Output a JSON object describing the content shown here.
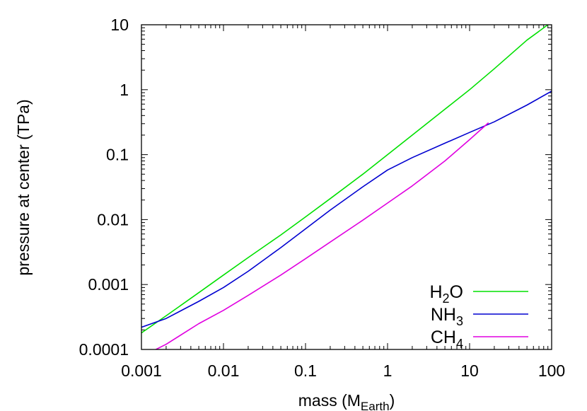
{
  "chart_data": {
    "type": "line",
    "xlabel": {
      "prefix": "mass (M",
      "sub": "Earth",
      "suffix": ")"
    },
    "ylabel": "pressure at center (TPa)",
    "xscale": "log",
    "yscale": "log",
    "xlim": [
      0.001,
      100
    ],
    "ylim": [
      0.0001,
      10
    ],
    "xticks": [
      {
        "value": 0.001,
        "label": "0.001"
      },
      {
        "value": 0.01,
        "label": "0.01"
      },
      {
        "value": 0.1,
        "label": "0.1"
      },
      {
        "value": 1,
        "label": "1"
      },
      {
        "value": 10,
        "label": "10"
      },
      {
        "value": 100,
        "label": "100"
      }
    ],
    "yticks": [
      {
        "value": 0.0001,
        "label": "0.0001"
      },
      {
        "value": 0.001,
        "label": "0.001"
      },
      {
        "value": 0.01,
        "label": "0.01"
      },
      {
        "value": 0.1,
        "label": "0.1"
      },
      {
        "value": 1,
        "label": "1"
      },
      {
        "value": 10,
        "label": "10"
      }
    ],
    "grid": false,
    "legend_position": "bottom-right",
    "series": [
      {
        "name": {
          "base": "H",
          "sub": "2",
          "rest": "O"
        },
        "color": "#00e000",
        "x": [
          0.001,
          0.002,
          0.005,
          0.01,
          0.02,
          0.05,
          0.1,
          0.2,
          0.5,
          1,
          2,
          5,
          10,
          20,
          50,
          90
        ],
        "y": [
          0.00018,
          0.00033,
          0.00075,
          0.0014,
          0.0026,
          0.0058,
          0.011,
          0.021,
          0.05,
          0.1,
          0.2,
          0.5,
          1.0,
          2.1,
          5.8,
          10
        ]
      },
      {
        "name": {
          "base": "NH",
          "sub": "3",
          "rest": ""
        },
        "color": "#0000d0",
        "x": [
          0.001,
          0.002,
          0.005,
          0.01,
          0.02,
          0.05,
          0.1,
          0.2,
          0.5,
          1,
          2,
          5,
          10,
          20,
          50,
          100
        ],
        "y": [
          0.00022,
          0.0003,
          0.00055,
          0.0009,
          0.0016,
          0.0037,
          0.0072,
          0.014,
          0.032,
          0.058,
          0.09,
          0.15,
          0.22,
          0.32,
          0.58,
          0.95
        ]
      },
      {
        "name": {
          "base": "CH",
          "sub": "4",
          "rest": ""
        },
        "color": "#e000e0",
        "x": [
          0.0015,
          0.002,
          0.005,
          0.01,
          0.02,
          0.05,
          0.1,
          0.2,
          0.5,
          1,
          2,
          5,
          10,
          17
        ],
        "y": [
          0.0001,
          0.00012,
          0.00025,
          0.0004,
          0.00068,
          0.0014,
          0.0025,
          0.0045,
          0.0098,
          0.018,
          0.033,
          0.08,
          0.17,
          0.31
        ]
      }
    ]
  }
}
